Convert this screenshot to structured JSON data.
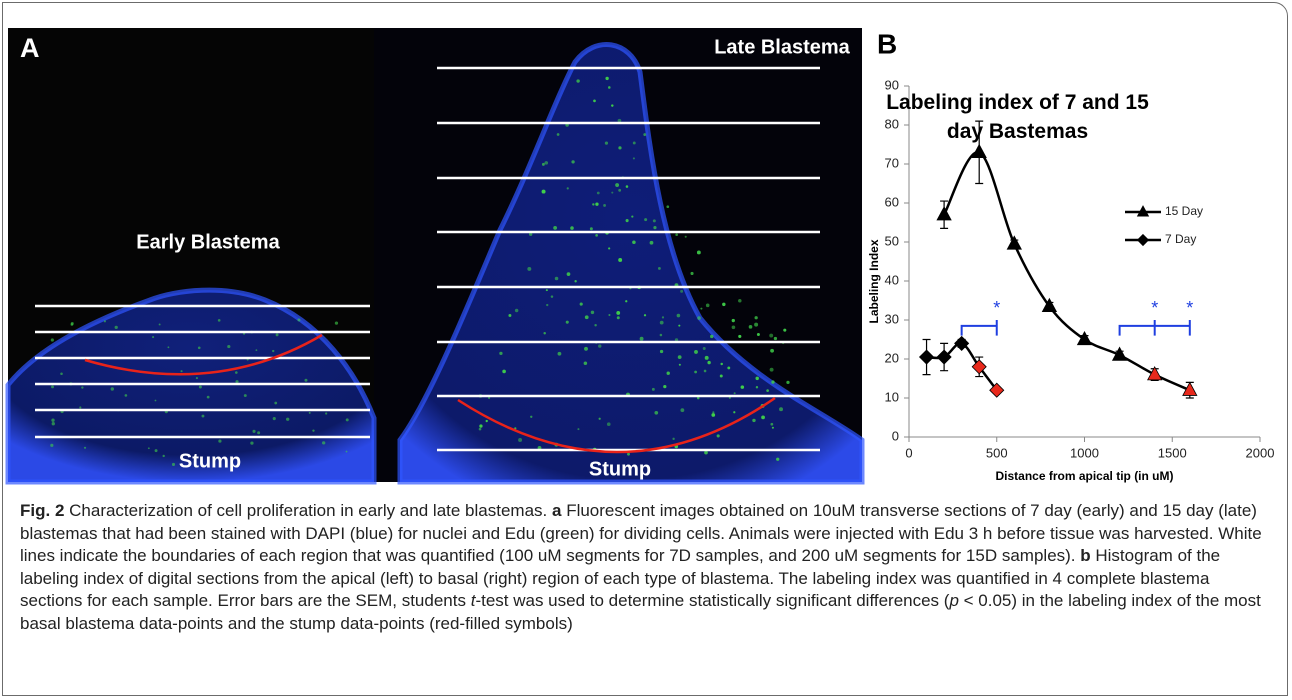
{
  "figure": {
    "panel_a": {
      "label": "A",
      "early_label": "Early Blastema",
      "early_stump": "Stump",
      "late_label": "Late Blastema",
      "late_stump": "Stump"
    },
    "panel_b": {
      "label": "B"
    }
  },
  "chart_data": {
    "type": "line",
    "title": "Labeling index of 7 and 15 day Bastemas",
    "x_label": "Distance from apical tip (in uM)",
    "y_label": "Labeling Index",
    "xlim": [
      0,
      2000
    ],
    "xticks": [
      0,
      500,
      1000,
      1500,
      2000
    ],
    "ylim": [
      0,
      90
    ],
    "yticks": [
      0,
      10,
      20,
      30,
      40,
      50,
      60,
      70,
      80,
      90
    ],
    "legend": "right",
    "smooth": true,
    "series": [
      {
        "name": "15 Day",
        "color": "#000000",
        "marker": "triangle",
        "x": [
          200,
          400,
          600,
          800,
          1000,
          1200,
          1400,
          1600
        ],
        "values": [
          57,
          73,
          49.5,
          33.5,
          25,
          21,
          16,
          12
        ],
        "errors": [
          3.5,
          8,
          1,
          1,
          1,
          1,
          1.5,
          2
        ],
        "marker_colors": [
          "#000000",
          "#000000",
          "#000000",
          "#000000",
          "#000000",
          "#000000",
          "#e8291c",
          "#e8291c"
        ]
      },
      {
        "name": "7 Day",
        "color": "#000000",
        "marker": "diamond",
        "x": [
          100,
          200,
          300,
          400,
          500
        ],
        "values": [
          20.5,
          20.5,
          24,
          18,
          12
        ],
        "errors": [
          4.5,
          3.5,
          1,
          2.5,
          0.5
        ],
        "marker_colors": [
          "#000000",
          "#000000",
          "#000000",
          "#e8291c",
          "#e8291c"
        ]
      }
    ],
    "annotations": [
      {
        "x": [
          300,
          500
        ],
        "y": 28.5,
        "ticks": [
          500
        ],
        "labels": [
          "*"
        ],
        "color": "#1f3fe0"
      },
      {
        "x": [
          1200,
          1600
        ],
        "y": 28.5,
        "ticks": [
          1400,
          1600
        ],
        "labels": [
          "*",
          "*"
        ],
        "color": "#1f3fe0"
      }
    ]
  },
  "caption": [
    {
      "text": "Fig. 2",
      "bold": true
    },
    {
      "text": " Characterization of cell proliferation in early and late blastemas. "
    },
    {
      "text": "a",
      "bold": true
    },
    {
      "text": " Fluorescent images obtained on 10uM transverse sections of 7 day (early) and 15 day (late) blastemas that had been stained with DAPI (blue) for nuclei and Edu (green) for dividing cells. Animals were injected with Edu 3 h before tissue was harvested. White lines indicate the boundaries of each region that was quantified (100 uM segments for 7D samples, and 200 uM segments for 15D samples). "
    },
    {
      "text": "b",
      "bold": true
    },
    {
      "text": " Histogram of the labeling index of digital sections from the apical (left) to basal (right) region of each type of blastema. The labeling index was quantified in 4 complete blastema sections for each sample. Error bars are the SEM, students "
    },
    {
      "text": "t",
      "italic": true
    },
    {
      "text": "-test was used to determine statistically significant differences ("
    },
    {
      "text": "p",
      "italic": true
    },
    {
      "text": " < 0.05) in the labeling index of the most basal blastema data-points and the stump data-points (red-filled symbols)"
    }
  ]
}
